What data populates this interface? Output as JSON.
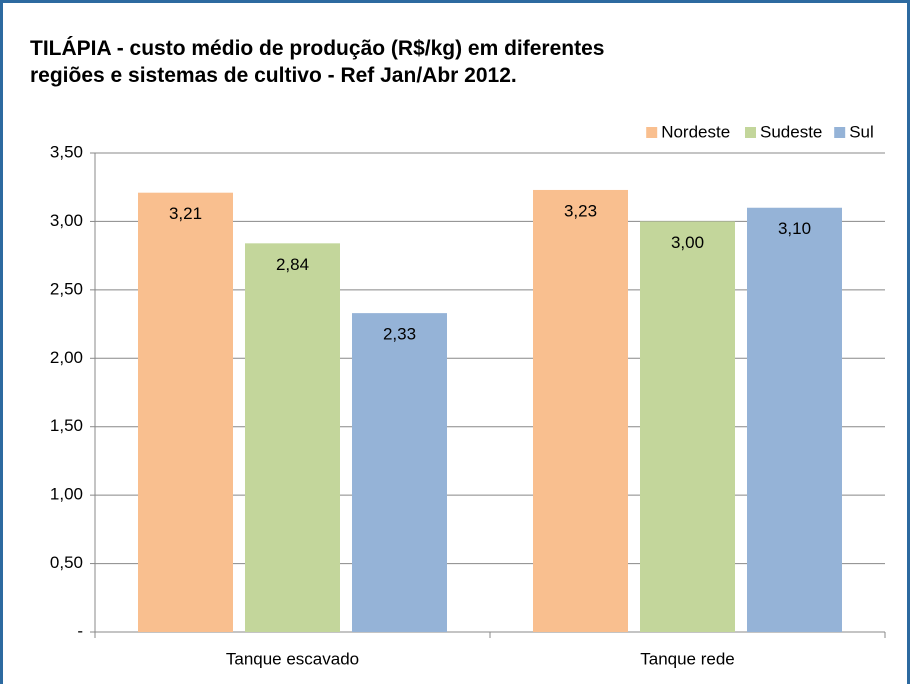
{
  "chart_data": {
    "type": "bar",
    "title": [
      "TILÁPIA - custo médio de produção (R$/kg) em diferentes",
      "regiões e sistemas de cultivo - Ref Jan/Abr 2012."
    ],
    "categories": [
      "Tanque escavado",
      "Tanque rede"
    ],
    "series": [
      {
        "name": "Nordeste",
        "color": "#f9bf8f",
        "values": [
          3.21,
          3.23
        ],
        "value_labels": [
          "3,21",
          "3,23"
        ]
      },
      {
        "name": "Sudeste",
        "color": "#c3d69b",
        "values": [
          2.84,
          3.0
        ],
        "value_labels": [
          "2,84",
          "3,00"
        ]
      },
      {
        "name": "Sul",
        "color": "#95b3d7",
        "values": [
          2.33,
          3.1
        ],
        "value_labels": [
          "2,33",
          "3,10"
        ]
      }
    ],
    "ylim": [
      0,
      3.5
    ],
    "yticks": [
      {
        "value": 0,
        "label": "-"
      },
      {
        "value": 0.5,
        "label": "0,50"
      },
      {
        "value": 1,
        "label": "1,00"
      },
      {
        "value": 1.5,
        "label": "1,50"
      },
      {
        "value": 2,
        "label": "2,00"
      },
      {
        "value": 2.5,
        "label": "2,50"
      },
      {
        "value": 3,
        "label": "3,00"
      },
      {
        "value": 3.5,
        "label": "3,50"
      }
    ],
    "grid": true,
    "legend": "top-right"
  }
}
